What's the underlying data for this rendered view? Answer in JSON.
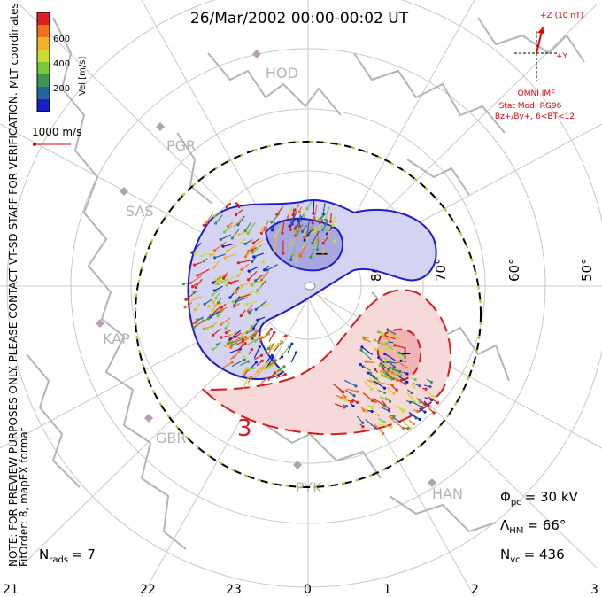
{
  "title": "26/Mar/2002 00:00-00:02 UT",
  "coord_label": "MLT coordinates",
  "preview_note": "NOTE: FOR PREVIEW PURPOSES ONLY. PLEASE CONTACT VT-SD STAFF FOR VERIFICATION.",
  "fit_note": "FitOrder: 8, mapEX format",
  "colorbar": {
    "title": "Vel [m/s]",
    "ticks": [
      "600",
      "400",
      "200"
    ],
    "colors": [
      "#e02020",
      "#f0701e",
      "#f0b428",
      "#c8dc32",
      "#78c83c",
      "#3c9650",
      "#2864a0",
      "#1420c8"
    ]
  },
  "vector_scale": "1000 m/s",
  "imf": {
    "z_label": "+Z (10 nT)",
    "y_label": "+Y",
    "source": "OMNI IMF",
    "model": "Stat Mod: RG96",
    "condition": "Bz+/By+, 6<BT<12"
  },
  "stations": [
    "HOD",
    "PGR",
    "SAS",
    "KAP",
    "GBR",
    "PYK",
    "HAN"
  ],
  "latitude_labels": [
    "80",
    "70°",
    "60°",
    "50°"
  ],
  "potential_signs": {
    "min": "−",
    "max": "+"
  },
  "contour_label": "3",
  "mlt_ticks": [
    "21",
    "22",
    "23",
    "0",
    "1",
    "2",
    "3"
  ],
  "stats": {
    "phi_pc": "= 30 kV",
    "lambda_hm": "= 66°",
    "n_vc": "= 436",
    "n_rads": "= 7"
  },
  "colors": {
    "negative_cell": "#b4b4e6",
    "positive_cell": "#f0b4b4",
    "negative_contour": "#1e1ec8",
    "positive_contour": "#d21e1e",
    "coastline": "#b4b4b4",
    "grid": "#c8c8c8",
    "station": "#b4a0b4"
  }
}
